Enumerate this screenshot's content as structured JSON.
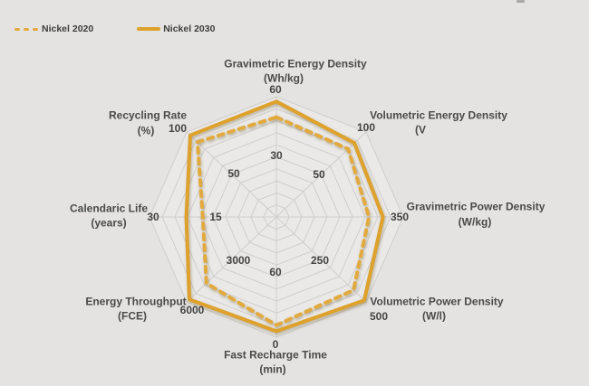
{
  "legend": {
    "items": [
      {
        "label": "Nickel 2020",
        "style": "dashed",
        "color": "#E2AA3E"
      },
      {
        "label": "Nickel 2030",
        "style": "solid",
        "color": "#DEA12B"
      }
    ]
  },
  "chart_data": {
    "type": "radar",
    "title": "",
    "rings": 10,
    "grid_color": "#cfcecc",
    "background": "#e4e3e1",
    "legend_position": "top-left",
    "axes": [
      {
        "name": "Gravimetric Energy Density",
        "unit": "(Wh/kg)",
        "max_label": "60",
        "mid_label": "30",
        "axis_max": 60
      },
      {
        "name": "Volumetric Energy Density",
        "unit": "(V",
        "max_label": "100",
        "mid_label": "50",
        "axis_max": 100
      },
      {
        "name": "Gravimetric Power Density",
        "unit": "(W/kg)",
        "max_label": "350",
        "mid_label": "",
        "axis_max": 350
      },
      {
        "name": "Volumetric Power Density",
        "unit": "(W/l)",
        "max_label": "500",
        "mid_label": "250",
        "axis_max": 500
      },
      {
        "name": "Fast Recharge Time",
        "unit": "(min)",
        "max_label": "0",
        "mid_label": "60",
        "axis_max": 0,
        "inverted": true,
        "center_value": 120
      },
      {
        "name": "Energy Throughput",
        "unit": "(FCE)",
        "max_label": "6000",
        "mid_label": "3000",
        "axis_max": 6000
      },
      {
        "name": "Calendaric Life",
        "unit": "(years)",
        "max_label": "30",
        "mid_label": "15",
        "axis_max": 30
      },
      {
        "name": "Recycling Rate",
        "unit": "(%)",
        "max_label": "100",
        "mid_label": "50",
        "axis_max": 100
      }
    ],
    "series": [
      {
        "name": "Nickel 2020",
        "line": "dashed",
        "color": "#E2AA3E",
        "fractions": [
          0.83,
          0.8,
          0.73,
          0.86,
          0.9,
          0.78,
          0.58,
          0.88
        ],
        "approx_values": [
          50,
          80,
          255,
          430,
          12,
          4700,
          17,
          88
        ]
      },
      {
        "name": "Nickel 2030",
        "line": "solid",
        "color": "#DEA12B",
        "fractions": [
          0.96,
          0.87,
          0.84,
          0.98,
          0.95,
          0.97,
          0.71,
          0.96
        ],
        "approx_values": [
          58,
          87,
          295,
          490,
          6,
          5800,
          21,
          96
        ]
      }
    ]
  }
}
